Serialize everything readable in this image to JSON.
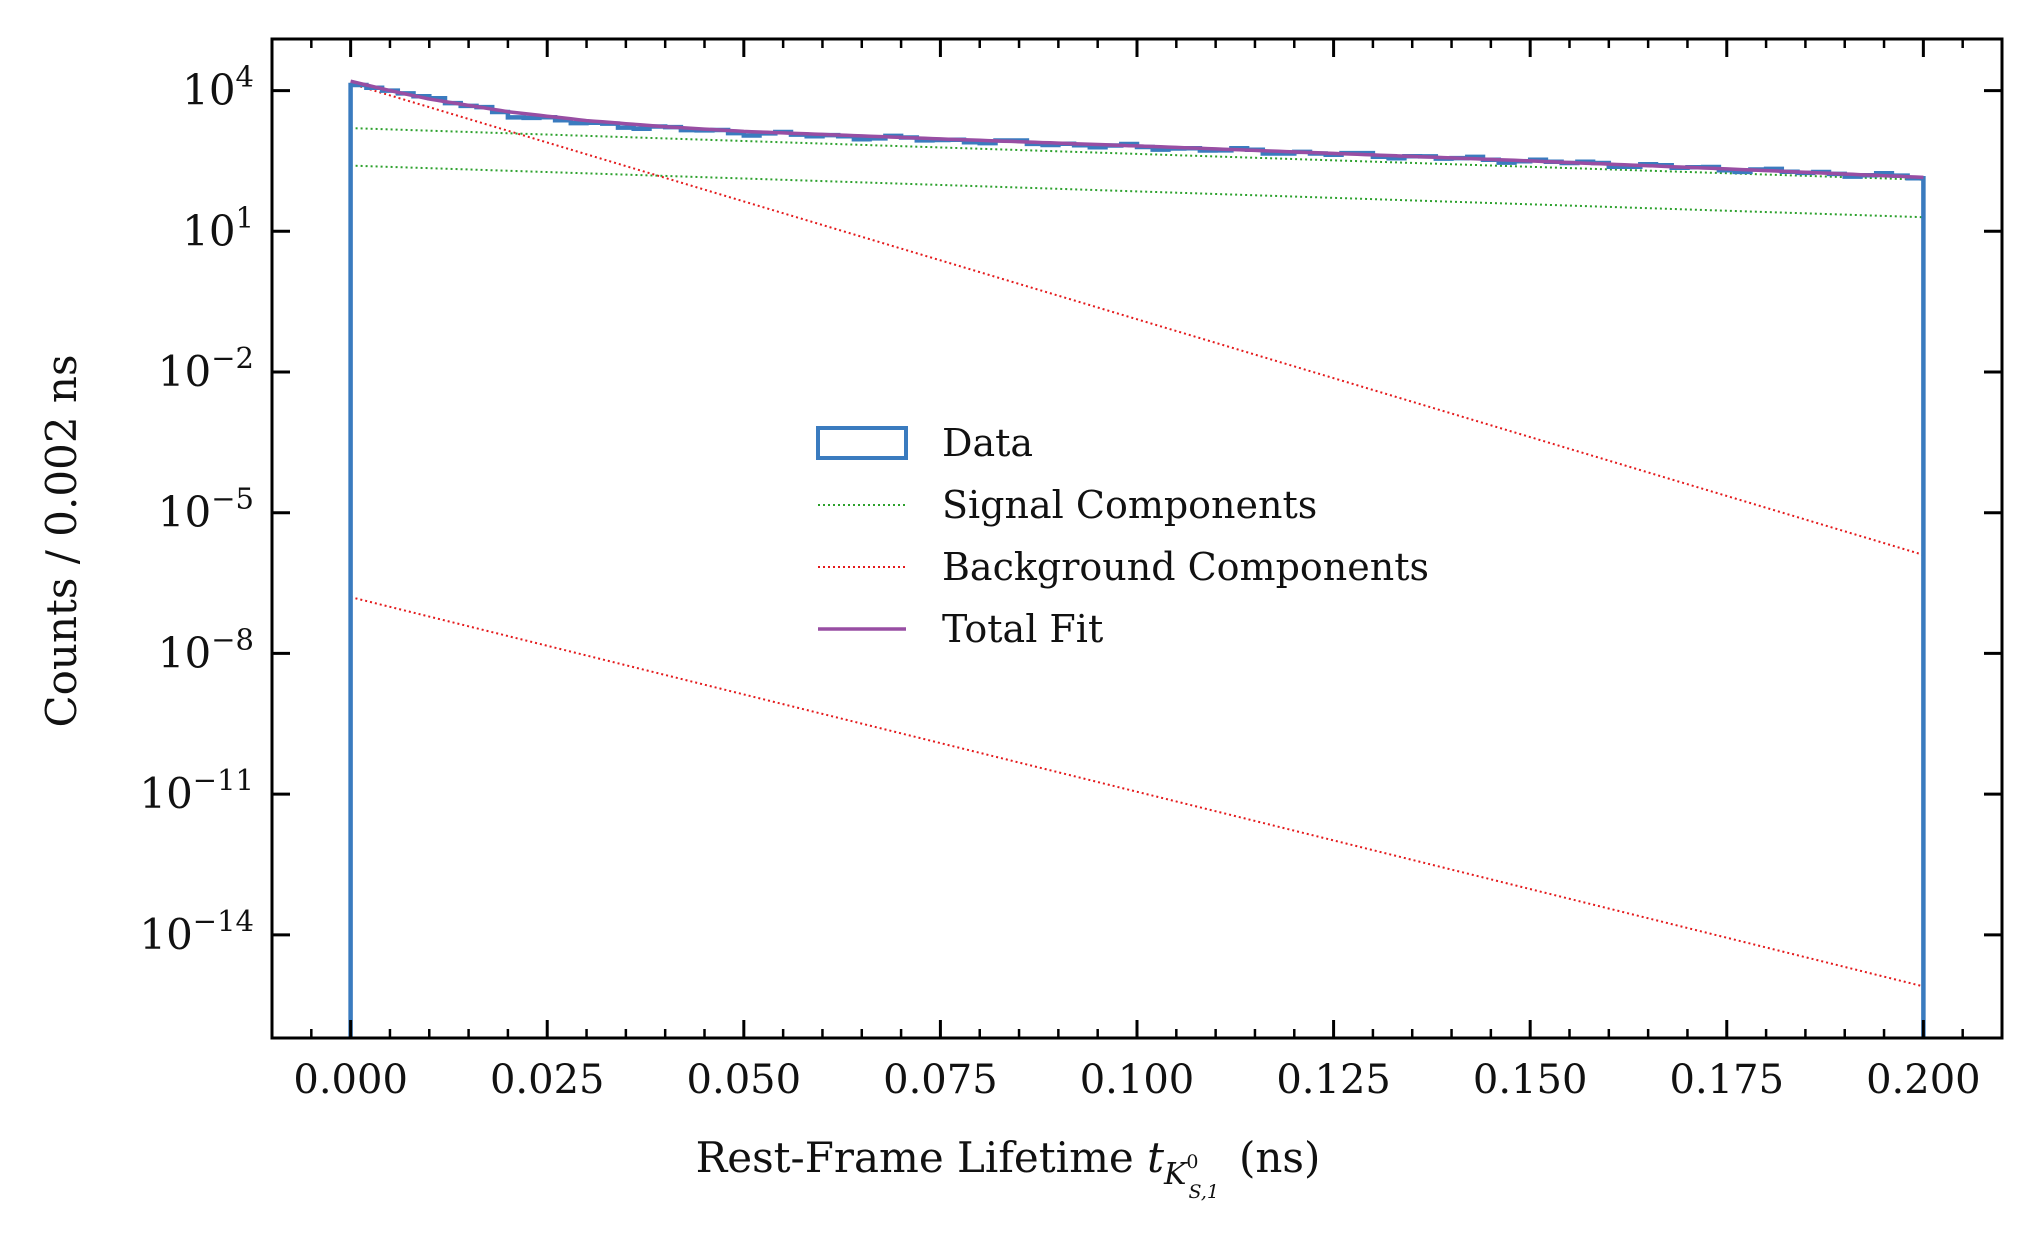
{
  "chart_data": {
    "type": "line",
    "title": "",
    "xlabel": {
      "main": "Rest-Frame Lifetime ",
      "var": "t",
      "sub": "K",
      "subsup": "0",
      "subsub": "S,1",
      "unit": "(ns)"
    },
    "ylabel": "Counts / 0.002 ns",
    "xlim": [
      -0.01,
      0.21
    ],
    "ylim_log10": [
      -16.2,
      5.1
    ],
    "yscale": "log",
    "grid": false,
    "legend_position": "center-left",
    "xticks": [
      "0.000",
      "0.025",
      "0.050",
      "0.075",
      "0.100",
      "0.125",
      "0.150",
      "0.175",
      "0.200"
    ],
    "xtick_values": [
      0.0,
      0.025,
      0.05,
      0.075,
      0.1,
      0.125,
      0.15,
      0.175,
      0.2
    ],
    "yticks": [
      {
        "base": "10",
        "exp": "4",
        "log10": 4
      },
      {
        "base": "10",
        "exp": "1",
        "log10": 1
      },
      {
        "base": "10",
        "exp": "−2",
        "log10": -2
      },
      {
        "base": "10",
        "exp": "−5",
        "log10": -5
      },
      {
        "base": "10",
        "exp": "−8",
        "log10": -8
      },
      {
        "base": "10",
        "exp": "−11",
        "log10": -11
      },
      {
        "base": "10",
        "exp": "−14",
        "log10": -14
      }
    ],
    "series": [
      {
        "name": "Data",
        "kind": "step-histogram",
        "color": "#3a7bbf",
        "bin_edges": [
          0.0,
          0.2
        ],
        "bin_width": 0.002,
        "points_log10": [
          [
            0.0,
            4.15
          ],
          [
            0.01,
            3.85
          ],
          [
            0.02,
            3.5
          ],
          [
            0.03,
            3.3
          ],
          [
            0.05,
            3.1
          ],
          [
            0.075,
            2.95
          ],
          [
            0.1,
            2.8
          ],
          [
            0.125,
            2.65
          ],
          [
            0.15,
            2.5
          ],
          [
            0.175,
            2.33
          ],
          [
            0.2,
            2.15
          ]
        ]
      },
      {
        "name": "Signal Components",
        "kind": "line",
        "color": "#2ca02c",
        "dash": "dotted",
        "components_log10": [
          [
            [
              0.0,
              3.2
            ],
            [
              0.2,
              2.1
            ]
          ],
          [
            [
              0.0,
              2.4
            ],
            [
              0.2,
              1.3
            ]
          ]
        ]
      },
      {
        "name": "Background Components",
        "kind": "line",
        "color": "#e41a1c",
        "dash": "dotted",
        "components_log10": [
          [
            [
              0.0,
              4.15
            ],
            [
              0.2,
              -5.9
            ]
          ],
          [
            [
              0.0,
              -6.8
            ],
            [
              0.2,
              -15.1
            ]
          ]
        ]
      },
      {
        "name": "Total Fit",
        "kind": "line",
        "color": "#984ea3",
        "points_log10": [
          [
            0.0,
            4.2
          ],
          [
            0.005,
            4.0
          ],
          [
            0.01,
            3.82
          ],
          [
            0.02,
            3.55
          ],
          [
            0.03,
            3.36
          ],
          [
            0.04,
            3.23
          ],
          [
            0.05,
            3.13
          ],
          [
            0.075,
            2.97
          ],
          [
            0.1,
            2.82
          ],
          [
            0.125,
            2.66
          ],
          [
            0.15,
            2.5
          ],
          [
            0.175,
            2.33
          ],
          [
            0.2,
            2.15
          ]
        ]
      }
    ],
    "legend": [
      {
        "label": "Data",
        "style": "box",
        "color": "#3a7bbf"
      },
      {
        "label": "Signal Components",
        "style": "dotted",
        "color": "#2ca02c"
      },
      {
        "label": "Background Components",
        "style": "dotted",
        "color": "#e41a1c"
      },
      {
        "label": "Total Fit",
        "style": "solid",
        "color": "#984ea3"
      }
    ]
  }
}
